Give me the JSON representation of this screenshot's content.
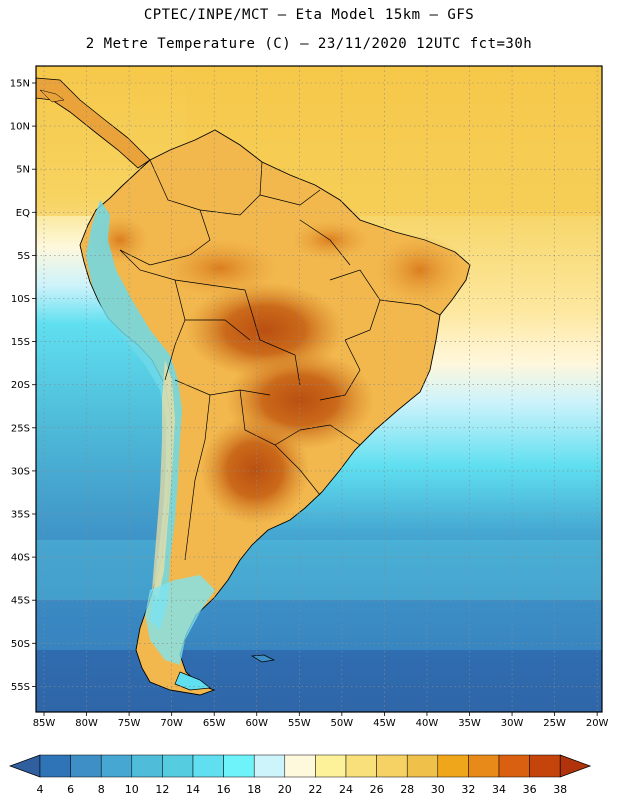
{
  "title_line1": "CPTEC/INPE/MCT –  Eta Model 15km – GFS",
  "title_line2": "2 Metre Temperature (C) – 23/11/2020 12UTC fct=30h",
  "lat_labels": [
    "15N",
    "10N",
    "5N",
    "EQ",
    "5S",
    "10S",
    "15S",
    "20S",
    "25S",
    "30S",
    "35S",
    "40S",
    "45S",
    "50S",
    "55S"
  ],
  "lon_labels": [
    "85W",
    "80W",
    "75W",
    "70W",
    "65W",
    "60W",
    "55W",
    "50W",
    "45W",
    "40W",
    "35W",
    "30W",
    "25W",
    "20W"
  ],
  "colorbar": {
    "labels": [
      "4",
      "6",
      "8",
      "10",
      "12",
      "14",
      "16",
      "18",
      "20",
      "22",
      "24",
      "26",
      "28",
      "30",
      "32",
      "34",
      "36",
      "38"
    ],
    "colors": [
      "#2f5f9f",
      "#2f74b6",
      "#3d8fc6",
      "#46a8d2",
      "#4fbcd9",
      "#55cce0",
      "#5fdff0",
      "#6ff3fa",
      "#cdf3fb",
      "#fef8dc",
      "#fdf29a",
      "#f9e07a",
      "#f5d263",
      "#efc04a",
      "#f0a61b",
      "#e88a19",
      "#d96010",
      "#c4440c",
      "#b0330c"
    ]
  }
}
